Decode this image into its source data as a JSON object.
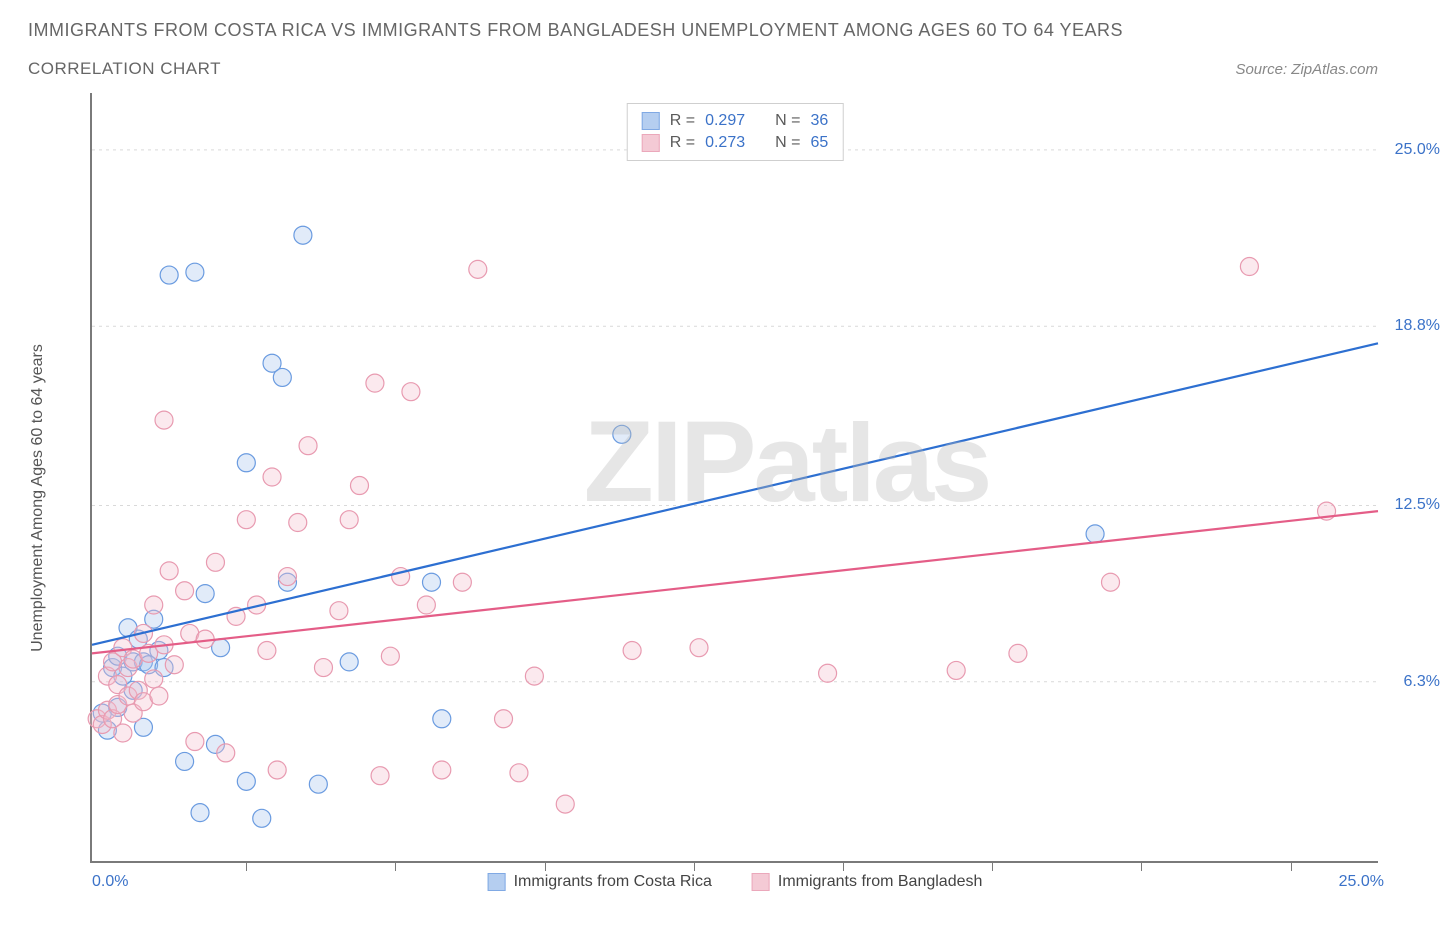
{
  "title_line1": "IMMIGRANTS FROM COSTA RICA VS IMMIGRANTS FROM BANGLADESH UNEMPLOYMENT AMONG AGES 60 TO 64 YEARS",
  "title_line2": "CORRELATION CHART",
  "source_text": "Source: ZipAtlas.com",
  "y_axis_label": "Unemployment Among Ages 60 to 64 years",
  "watermark": "ZIPatlas",
  "chart": {
    "type": "scatter-with-regression",
    "background_color": "#ffffff",
    "grid_color": "#d9d9d9",
    "axis_color": "#7a7a7a",
    "tick_label_color": "#3b72c8",
    "text_color": "#555555",
    "xlim": [
      0,
      25
    ],
    "ylim": [
      0,
      27
    ],
    "x_tick_positions": [
      3.0,
      5.9,
      8.8,
      11.7,
      14.6,
      17.5,
      20.4,
      23.3
    ],
    "y_grid": [
      {
        "value": 6.3,
        "label": "6.3%"
      },
      {
        "value": 12.5,
        "label": "12.5%"
      },
      {
        "value": 18.8,
        "label": "18.8%"
      },
      {
        "value": 25.0,
        "label": "25.0%"
      }
    ],
    "x_left_label": "0.0%",
    "x_right_label": "25.0%",
    "marker_radius": 9,
    "marker_stroke_width": 1.2,
    "marker_fill_opacity": 0.35,
    "line_width": 2.2,
    "series": [
      {
        "name": "Immigrants from Costa Rica",
        "color": "#6a9be0",
        "line_color": "#2d6fd1",
        "fill_color": "#a9c6ee",
        "R": "0.297",
        "N": "36",
        "reg_start": [
          0.0,
          7.6
        ],
        "reg_end": [
          25.0,
          18.2
        ],
        "points": [
          [
            0.2,
            5.2
          ],
          [
            0.3,
            4.6
          ],
          [
            0.4,
            6.8
          ],
          [
            0.5,
            5.4
          ],
          [
            0.5,
            7.2
          ],
          [
            0.6,
            6.5
          ],
          [
            0.7,
            8.2
          ],
          [
            0.8,
            6.0
          ],
          [
            0.8,
            7.0
          ],
          [
            0.9,
            7.8
          ],
          [
            1.0,
            7.0
          ],
          [
            1.0,
            4.7
          ],
          [
            1.1,
            6.9
          ],
          [
            1.2,
            8.5
          ],
          [
            1.3,
            7.4
          ],
          [
            1.4,
            6.8
          ],
          [
            1.5,
            20.6
          ],
          [
            1.8,
            3.5
          ],
          [
            2.0,
            20.7
          ],
          [
            2.1,
            1.7
          ],
          [
            2.2,
            9.4
          ],
          [
            2.4,
            4.1
          ],
          [
            2.5,
            7.5
          ],
          [
            3.0,
            2.8
          ],
          [
            3.0,
            14.0
          ],
          [
            3.3,
            1.5
          ],
          [
            3.5,
            17.5
          ],
          [
            3.7,
            17.0
          ],
          [
            3.8,
            9.8
          ],
          [
            4.1,
            22.0
          ],
          [
            4.4,
            2.7
          ],
          [
            5.0,
            7.0
          ],
          [
            6.6,
            9.8
          ],
          [
            6.8,
            5.0
          ],
          [
            10.3,
            15.0
          ],
          [
            19.5,
            11.5
          ]
        ]
      },
      {
        "name": "Immigrants from Bangladesh",
        "color": "#e89ab0",
        "line_color": "#e45d87",
        "fill_color": "#f3c1ce",
        "R": "0.273",
        "N": "65",
        "reg_start": [
          0.0,
          7.3
        ],
        "reg_end": [
          25.0,
          12.3
        ],
        "points": [
          [
            0.1,
            5.0
          ],
          [
            0.2,
            4.8
          ],
          [
            0.3,
            5.3
          ],
          [
            0.3,
            6.5
          ],
          [
            0.4,
            5.0
          ],
          [
            0.4,
            7.0
          ],
          [
            0.5,
            5.5
          ],
          [
            0.5,
            6.2
          ],
          [
            0.6,
            4.5
          ],
          [
            0.6,
            7.5
          ],
          [
            0.7,
            6.8
          ],
          [
            0.7,
            5.8
          ],
          [
            0.8,
            5.2
          ],
          [
            0.8,
            7.1
          ],
          [
            0.9,
            6.0
          ],
          [
            1.0,
            5.6
          ],
          [
            1.0,
            8.0
          ],
          [
            1.1,
            7.3
          ],
          [
            1.2,
            6.4
          ],
          [
            1.2,
            9.0
          ],
          [
            1.3,
            5.8
          ],
          [
            1.4,
            7.6
          ],
          [
            1.4,
            15.5
          ],
          [
            1.5,
            10.2
          ],
          [
            1.6,
            6.9
          ],
          [
            1.8,
            9.5
          ],
          [
            1.9,
            8.0
          ],
          [
            2.0,
            4.2
          ],
          [
            2.2,
            7.8
          ],
          [
            2.4,
            10.5
          ],
          [
            2.6,
            3.8
          ],
          [
            2.8,
            8.6
          ],
          [
            3.0,
            12.0
          ],
          [
            3.2,
            9.0
          ],
          [
            3.4,
            7.4
          ],
          [
            3.5,
            13.5
          ],
          [
            3.6,
            3.2
          ],
          [
            3.8,
            10.0
          ],
          [
            4.0,
            11.9
          ],
          [
            4.2,
            14.6
          ],
          [
            4.5,
            6.8
          ],
          [
            4.8,
            8.8
          ],
          [
            5.0,
            12.0
          ],
          [
            5.2,
            13.2
          ],
          [
            5.5,
            16.8
          ],
          [
            5.6,
            3.0
          ],
          [
            5.8,
            7.2
          ],
          [
            6.0,
            10.0
          ],
          [
            6.2,
            16.5
          ],
          [
            6.5,
            9.0
          ],
          [
            6.8,
            3.2
          ],
          [
            7.2,
            9.8
          ],
          [
            7.5,
            20.8
          ],
          [
            8.0,
            5.0
          ],
          [
            8.3,
            3.1
          ],
          [
            8.6,
            6.5
          ],
          [
            9.2,
            2.0
          ],
          [
            10.5,
            7.4
          ],
          [
            11.8,
            7.5
          ],
          [
            14.3,
            6.6
          ],
          [
            16.8,
            6.7
          ],
          [
            18.0,
            7.3
          ],
          [
            19.8,
            9.8
          ],
          [
            22.5,
            20.9
          ],
          [
            24.0,
            12.3
          ]
        ]
      }
    ]
  },
  "bottom_legend": [
    {
      "label": "Immigrants from Costa Rica",
      "series": 0
    },
    {
      "label": "Immigrants from Bangladesh",
      "series": 1
    }
  ],
  "top_legend_labels": {
    "R": "R =",
    "N": "N ="
  }
}
